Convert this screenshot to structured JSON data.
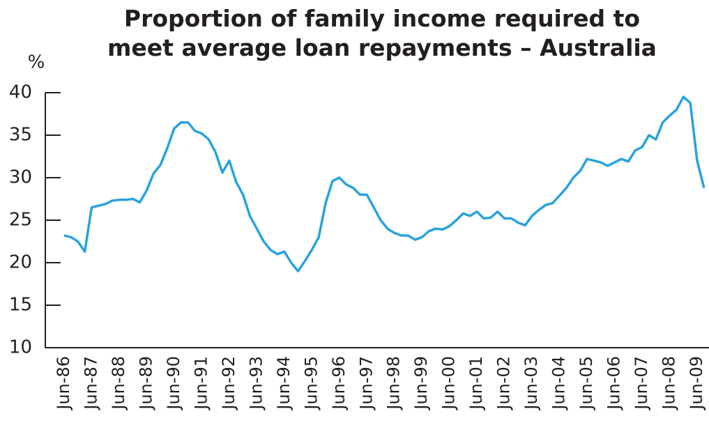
{
  "chart_data": {
    "type": "line",
    "title": "Proportion of family income required to meet average loan repayments – Australia",
    "ylabel": "%",
    "categories": [
      "Jun-86",
      null,
      null,
      null,
      "Jun-87",
      null,
      null,
      null,
      "Jun-88",
      null,
      null,
      null,
      "Jun-89",
      null,
      null,
      null,
      "Jun-90",
      null,
      null,
      null,
      "Jun-91",
      null,
      null,
      null,
      "Jun-92",
      null,
      null,
      null,
      "Jun-93",
      null,
      null,
      null,
      "Jun-94",
      null,
      null,
      null,
      "Jun-95",
      null,
      null,
      null,
      "Jun-96",
      null,
      null,
      null,
      "Jun-97",
      null,
      null,
      null,
      "Jun-98",
      null,
      null,
      null,
      "Jun-99",
      null,
      null,
      null,
      "Jun-00",
      null,
      null,
      null,
      "Jun-01",
      null,
      null,
      null,
      "Jun-02",
      null,
      null,
      null,
      "Jun-03",
      null,
      null,
      null,
      "Jun-04",
      null,
      null,
      null,
      "Jun-05",
      null,
      null,
      null,
      "Jun-06",
      null,
      null,
      null,
      "Jun-07",
      null,
      null,
      null,
      "Jun-08",
      null,
      null,
      null,
      "Jun-09",
      null
    ],
    "values": [
      23.2,
      23,
      22.5,
      21.3,
      26.5,
      26.7,
      26.9,
      27.3,
      27.4,
      27.4,
      27.5,
      27.1,
      28.5,
      30.5,
      31.5,
      33.5,
      35.8,
      36.5,
      36.5,
      35.5,
      35.2,
      34.5,
      33,
      30.6,
      32,
      29.5,
      28,
      25.5,
      24,
      22.5,
      21.5,
      21,
      21.3,
      20,
      19,
      20.2,
      21.5,
      23,
      27,
      29.6,
      30,
      29.2,
      28.8,
      28,
      28,
      26.5,
      25,
      24,
      23.5,
      23.2,
      23.2,
      22.7,
      23,
      23.7,
      24,
      23.9,
      24.3,
      25,
      25.8,
      25.5,
      26,
      25.2,
      25.3,
      26,
      25.2,
      25.2,
      24.7,
      24.4,
      25.5,
      26.2,
      26.8,
      27,
      27.9,
      28.8,
      30,
      30.8,
      32.2,
      32,
      31.8,
      31.4,
      31.8,
      32.2,
      31.9,
      33.2,
      33.6,
      35,
      34.5,
      36.5,
      37.3,
      38,
      39.5,
      38.8,
      32,
      28.8
    ],
    "color": "#29a3dd",
    "ylim": [
      10,
      40
    ],
    "yticks": [
      10,
      15,
      20,
      25,
      30,
      35,
      40
    ]
  }
}
